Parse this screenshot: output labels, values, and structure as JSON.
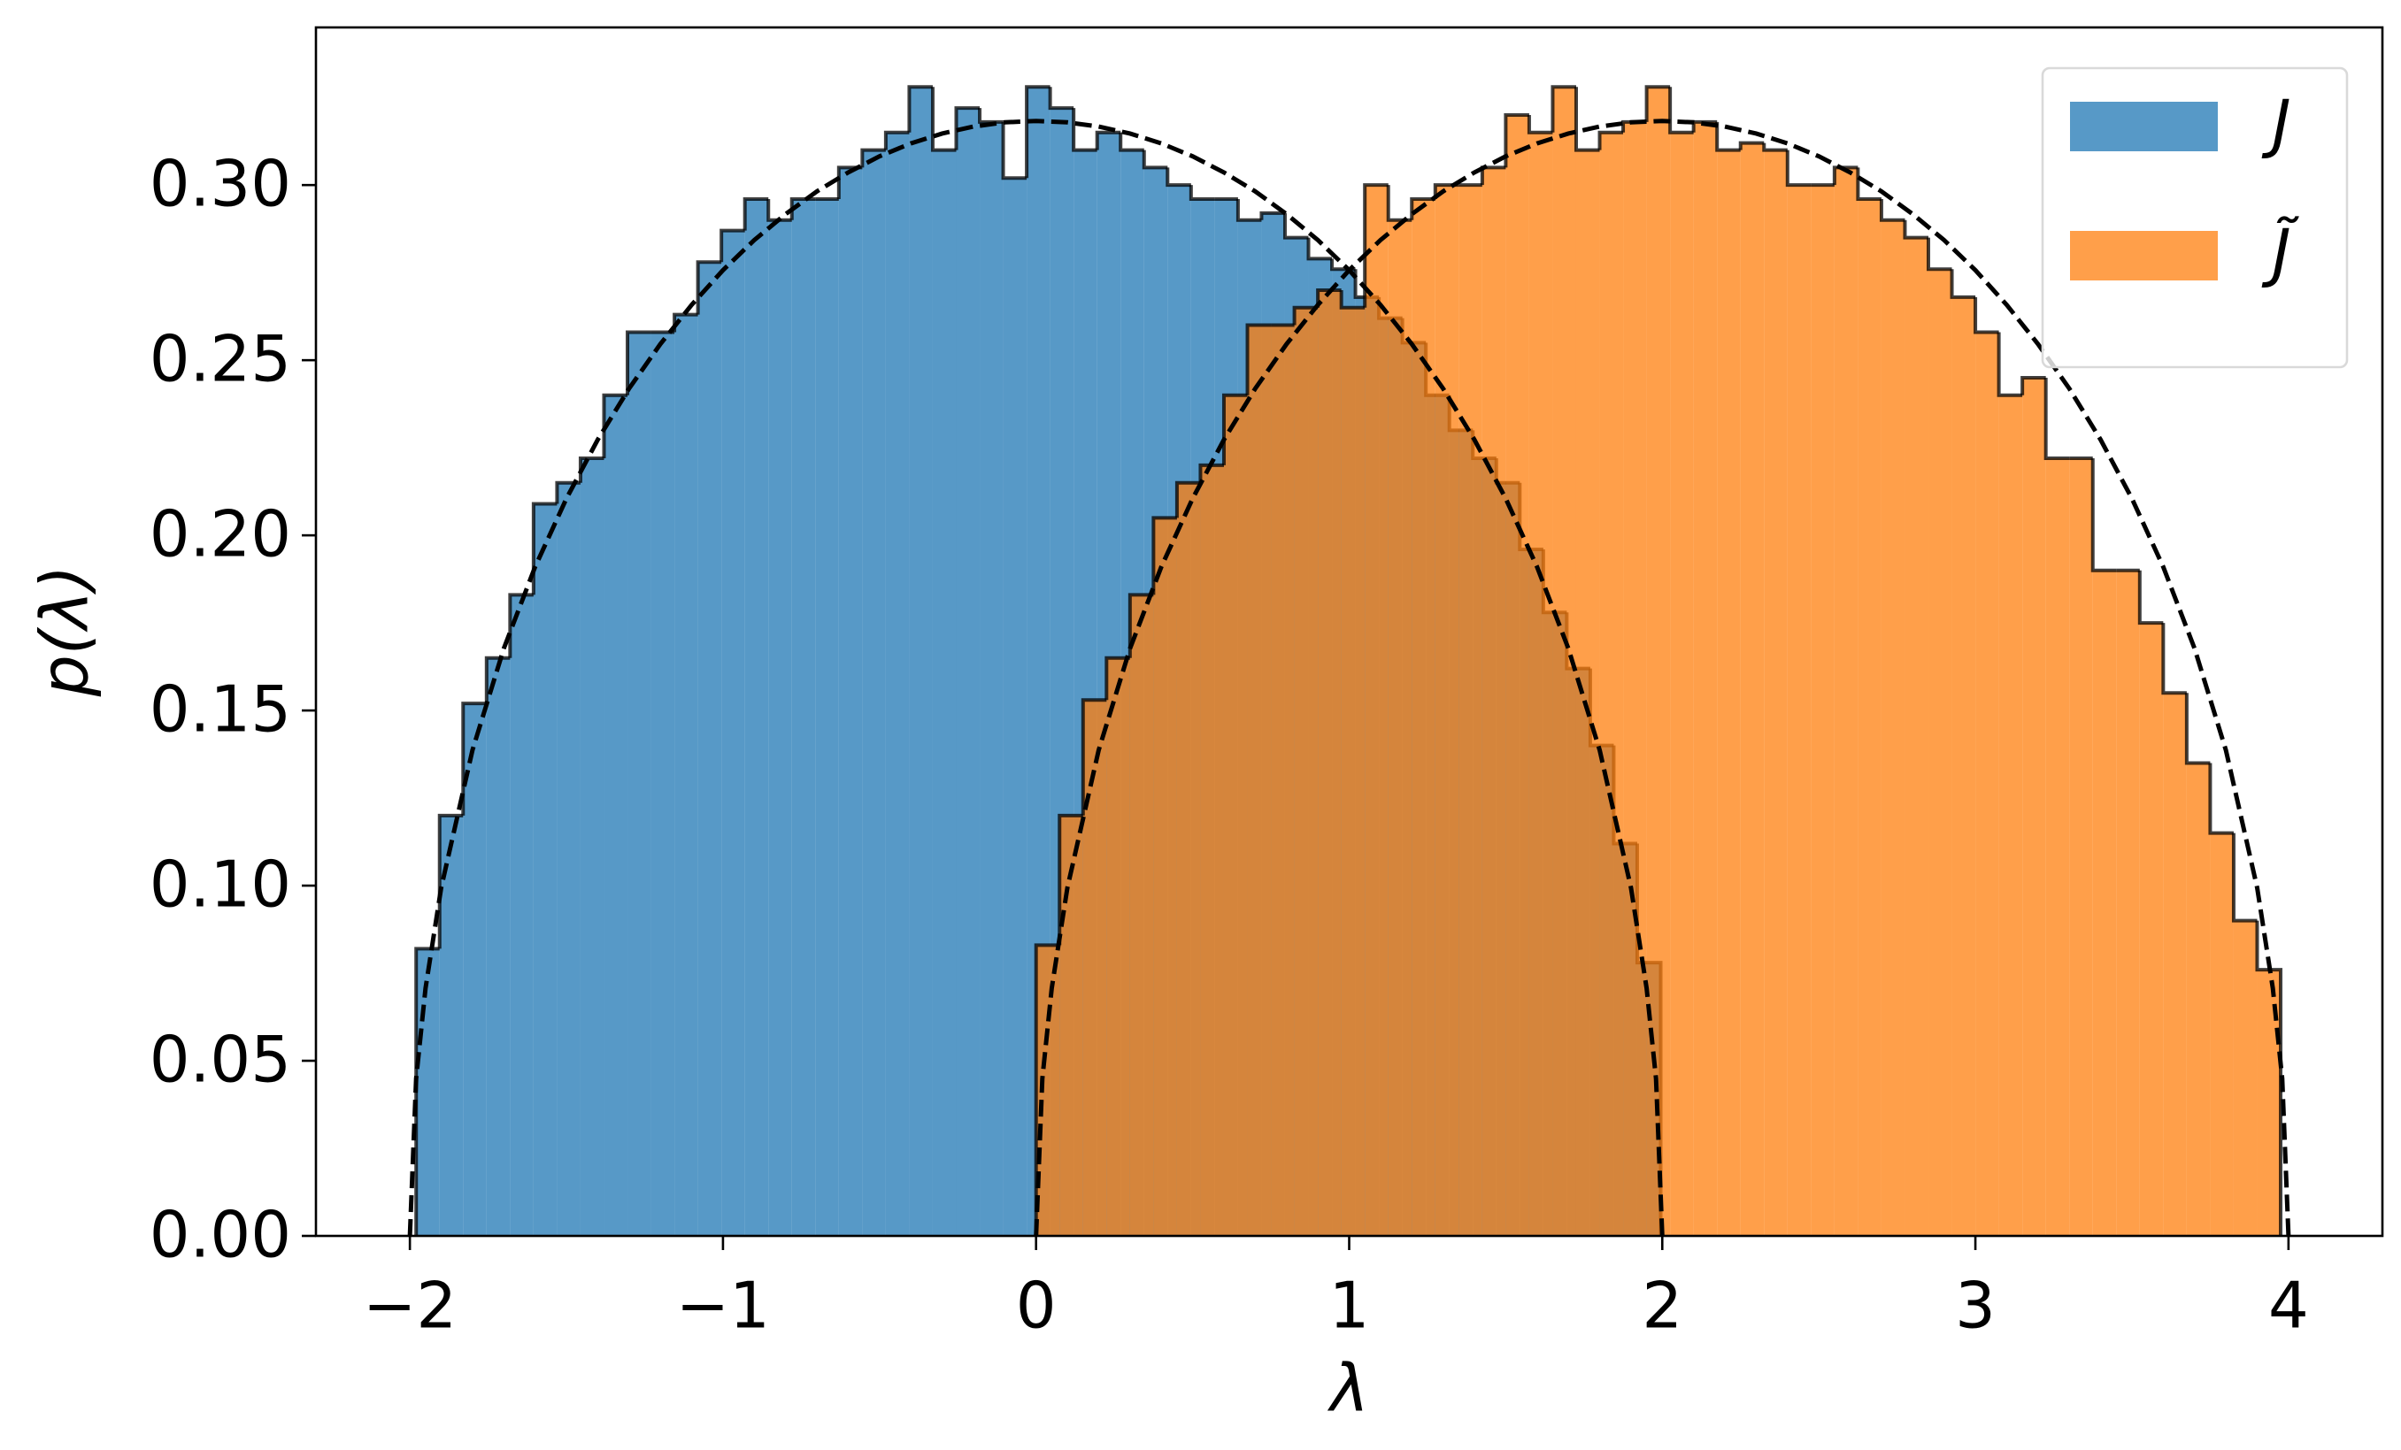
{
  "chart_data": {
    "type": "histogram",
    "xlabel": "λ",
    "ylabel": "p(λ)",
    "xlim": [
      -2.3,
      4.3
    ],
    "ylim": [
      0,
      0.345
    ],
    "xticks": [
      {
        "value": -2,
        "label": "−2"
      },
      {
        "value": -1,
        "label": "−1"
      },
      0,
      1,
      2,
      3,
      4
    ],
    "yticks": [
      {
        "value": 0,
        "label": "0.00"
      },
      0.05,
      {
        "value": 0.1,
        "label": "0.10"
      },
      0.15,
      {
        "value": 0.2,
        "label": "0.20"
      },
      0.25,
      {
        "value": 0.3,
        "label": "0.30"
      }
    ],
    "legend": "upper right",
    "edgecolor": "#000000",
    "alpha": 0.75,
    "series": [
      {
        "name": "J",
        "color": "#1f77b4",
        "bins": [
          -1.98,
          -1.905,
          -1.83,
          -1.755,
          -1.68,
          -1.605,
          -1.53,
          -1.455,
          -1.38,
          -1.305,
          -1.23,
          -1.155,
          -1.08,
          -1.005,
          -0.93,
          -0.855,
          -0.78,
          -0.705,
          -0.63,
          -0.555,
          -0.48,
          -0.405,
          -0.33,
          -0.255,
          -0.18,
          -0.105,
          -0.03,
          0.045,
          0.12,
          0.195,
          0.27,
          0.345,
          0.42,
          0.495,
          0.57,
          0.645,
          0.72,
          0.795,
          0.87,
          0.945,
          1.02,
          1.095,
          1.17,
          1.245,
          1.32,
          1.395,
          1.47,
          1.545,
          1.62,
          1.695,
          1.77,
          1.845,
          1.92,
          1.995
        ],
        "values": [
          0.082,
          0.12,
          0.152,
          0.165,
          0.183,
          0.209,
          0.215,
          0.222,
          0.24,
          0.258,
          0.258,
          0.263,
          0.278,
          0.287,
          0.296,
          0.29,
          0.296,
          0.296,
          0.305,
          0.31,
          0.315,
          0.328,
          0.31,
          0.322,
          0.318,
          0.302,
          0.328,
          0.322,
          0.31,
          0.315,
          0.31,
          0.305,
          0.3,
          0.296,
          0.296,
          0.29,
          0.292,
          0.285,
          0.279,
          0.276,
          0.268,
          0.262,
          0.255,
          0.24,
          0.23,
          0.222,
          0.215,
          0.196,
          0.178,
          0.162,
          0.14,
          0.112,
          0.078
        ]
      },
      {
        "name": "J̃",
        "color": "#ff7f0e",
        "bins": [
          0,
          0.075,
          0.15,
          0.225,
          0.3,
          0.375,
          0.45,
          0.525,
          0.6,
          0.675,
          0.75,
          0.825,
          0.9,
          0.975,
          1.05,
          1.125,
          1.2,
          1.275,
          1.35,
          1.425,
          1.5,
          1.575,
          1.65,
          1.725,
          1.8,
          1.875,
          1.95,
          2.025,
          2.1,
          2.175,
          2.25,
          2.325,
          2.4,
          2.475,
          2.55,
          2.625,
          2.7,
          2.775,
          2.85,
          2.925,
          3,
          3.075,
          3.15,
          3.225,
          3.3,
          3.375,
          3.45,
          3.525,
          3.6,
          3.675,
          3.75,
          3.825,
          3.9,
          3.975
        ],
        "values": [
          0.083,
          0.12,
          0.153,
          0.165,
          0.183,
          0.205,
          0.215,
          0.22,
          0.24,
          0.26,
          0.26,
          0.265,
          0.27,
          0.265,
          0.3,
          0.29,
          0.296,
          0.3,
          0.3,
          0.305,
          0.32,
          0.315,
          0.328,
          0.31,
          0.315,
          0.318,
          0.328,
          0.315,
          0.318,
          0.31,
          0.312,
          0.31,
          0.3,
          0.3,
          0.305,
          0.296,
          0.29,
          0.285,
          0.276,
          0.268,
          0.258,
          0.24,
          0.245,
          0.222,
          0.222,
          0.19,
          0.19,
          0.175,
          0.155,
          0.135,
          0.115,
          0.09,
          0.076
        ]
      }
    ],
    "lines": [
      {
        "color": "#000000",
        "linestyle": "dashed",
        "x": [
          -2,
          -1.98,
          -1.95,
          -1.9,
          -1.8,
          -1.7,
          -1.6,
          -1.5,
          -1.4,
          -1.3,
          -1.2,
          -1.1,
          -1,
          -0.9,
          -0.8,
          -0.7,
          -0.6,
          -0.5,
          -0.4,
          -0.3,
          -0.2,
          -0.1,
          0,
          0.1,
          0.2,
          0.3,
          0.4,
          0.5,
          0.6,
          0.7,
          0.8,
          0.9,
          1,
          1.1,
          1.2,
          1.3,
          1.4,
          1.5,
          1.6,
          1.7,
          1.8,
          1.9,
          1.95,
          1.98,
          2
        ],
        "values": [
          0,
          0.0449,
          0.0707,
          0.0994,
          0.1387,
          0.1677,
          0.191,
          0.2105,
          0.2273,
          0.2419,
          0.2546,
          0.2658,
          0.2757,
          0.2843,
          0.2917,
          0.2982,
          0.3036,
          0.3082,
          0.3119,
          0.3147,
          0.3167,
          0.3179,
          0.3183,
          0.3179,
          0.3167,
          0.3147,
          0.3119,
          0.3082,
          0.3036,
          0.2982,
          0.2917,
          0.2843,
          0.2757,
          0.2658,
          0.2546,
          0.2419,
          0.2273,
          0.2105,
          0.191,
          0.1677,
          0.1387,
          0.0994,
          0.0707,
          0.0449,
          0
        ]
      },
      {
        "color": "#000000",
        "linestyle": "dashed",
        "x": [
          0,
          0.02,
          0.05,
          0.1,
          0.2,
          0.3,
          0.4,
          0.5,
          0.6,
          0.7,
          0.8,
          0.9,
          1,
          1.1,
          1.2,
          1.3,
          1.4,
          1.5,
          1.6,
          1.7,
          1.8,
          1.9,
          2,
          2.1,
          2.2,
          2.3,
          2.4,
          2.5,
          2.6,
          2.7,
          2.8,
          2.9,
          3,
          3.1,
          3.2,
          3.3,
          3.4,
          3.5,
          3.6,
          3.7,
          3.8,
          3.9,
          3.95,
          3.98,
          4
        ],
        "values": [
          0,
          0.0449,
          0.0707,
          0.0994,
          0.1387,
          0.1677,
          0.191,
          0.2105,
          0.2273,
          0.2419,
          0.2546,
          0.2658,
          0.2757,
          0.2843,
          0.2917,
          0.2982,
          0.3036,
          0.3082,
          0.3119,
          0.3147,
          0.3167,
          0.3179,
          0.3183,
          0.3179,
          0.3167,
          0.3147,
          0.3119,
          0.3082,
          0.3036,
          0.2982,
          0.2917,
          0.2843,
          0.2757,
          0.2658,
          0.2546,
          0.2419,
          0.2273,
          0.2105,
          0.191,
          0.1677,
          0.1387,
          0.0994,
          0.0707,
          0.0449,
          0
        ]
      }
    ]
  }
}
